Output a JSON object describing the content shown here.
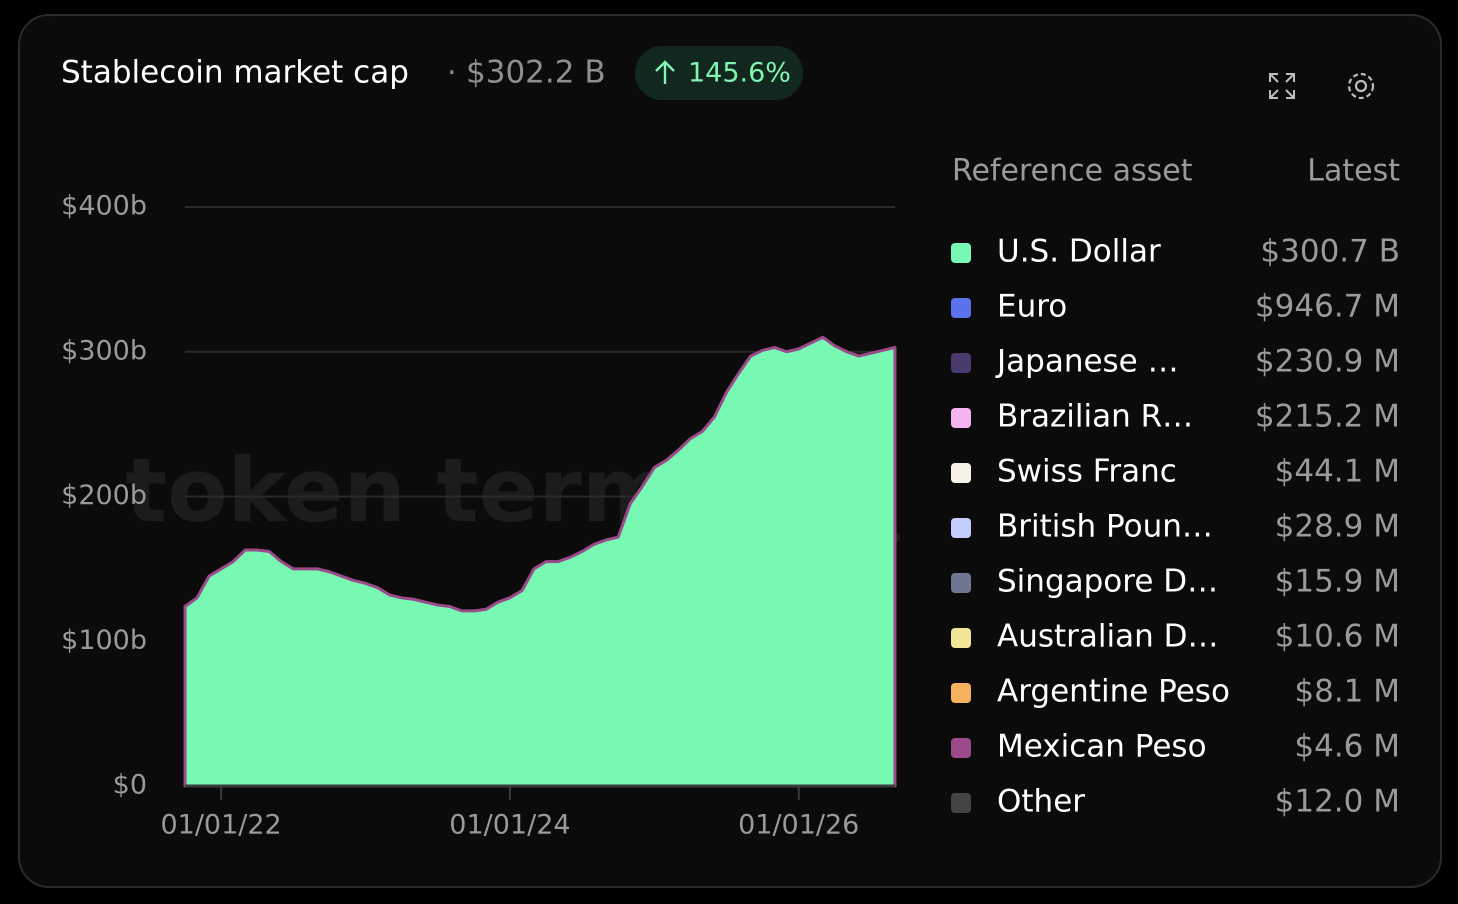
{
  "chart_data": {
    "type": "area",
    "title": "Stablecoin market cap",
    "total": 302.2,
    "total_label": "$302.2 B",
    "change": 145.6,
    "change_label": "145.6%",
    "watermark": "token terminal_",
    "legend_headers": [
      "Reference asset",
      "Latest"
    ],
    "x": [
      "10/01/21",
      "11/01/21",
      "12/01/21",
      "01/01/22",
      "02/01/22",
      "03/01/22",
      "04/01/22",
      "05/01/22",
      "06/01/22",
      "07/01/22",
      "08/01/22",
      "09/01/22",
      "10/01/22",
      "11/01/22",
      "12/01/22",
      "01/01/23",
      "02/01/23",
      "03/01/23",
      "04/01/23",
      "05/01/23",
      "06/01/23",
      "07/01/23",
      "08/01/23",
      "09/01/23",
      "10/01/23",
      "11/01/23",
      "12/01/23",
      "01/01/24",
      "02/01/24",
      "03/01/24",
      "04/01/24",
      "05/01/24",
      "06/01/24",
      "07/01/24",
      "08/01/24",
      "09/01/24",
      "10/01/24",
      "11/01/24",
      "12/01/24",
      "01/01/25",
      "02/01/25",
      "03/01/25",
      "04/01/25",
      "05/01/25",
      "06/01/25",
      "07/01/25",
      "08/01/25",
      "09/01/25",
      "10/01/25",
      "11/01/25",
      "12/01/25",
      "01/01/26",
      "02/01/26",
      "03/01/26",
      "04/01/26",
      "05/01/26",
      "06/01/26",
      "07/01/26",
      "08/01/26",
      "09/01/26"
    ],
    "xlim": [
      "10/01/21",
      "09/01/26"
    ],
    "xticks": [
      "01/01/22",
      "01/01/24",
      "01/01/26"
    ],
    "ylim": [
      0,
      400
    ],
    "yticks": [
      {
        "value": 0,
        "label": "$0"
      },
      {
        "value": 100,
        "label": "$100b"
      },
      {
        "value": 200,
        "label": "$200b"
      },
      {
        "value": 300,
        "label": "$300b"
      },
      {
        "value": 400,
        "label": "$400b"
      }
    ],
    "grid": true,
    "series": [
      {
        "name": "U.S. Dollar",
        "color": "#78f9b3",
        "latest": 300.7,
        "latest_label": "$300.7 B",
        "values": [
          124,
          130,
          145,
          150,
          155,
          163,
          163,
          162,
          155,
          150,
          150,
          150,
          148,
          145,
          142,
          140,
          137,
          132,
          130,
          129,
          127,
          125,
          124,
          121,
          121,
          122,
          127,
          130,
          135,
          150,
          155,
          155,
          158,
          162,
          167,
          170,
          172,
          195,
          207,
          220,
          225,
          232,
          240,
          245,
          255,
          272,
          285,
          297,
          301,
          303,
          300,
          302,
          306,
          310,
          304,
          300,
          297,
          299,
          301,
          303
        ]
      },
      {
        "name": "Euro",
        "color": "#5a73ec",
        "latest": 0.9467,
        "latest_label": "$946.7 M"
      },
      {
        "name": "Japanese …",
        "color": "#4a3b6e",
        "latest": 0.2309,
        "latest_label": "$230.9 M"
      },
      {
        "name": "Brazilian R…",
        "color": "#f5b4f0",
        "latest": 0.2152,
        "latest_label": "$215.2 M"
      },
      {
        "name": "Swiss Franc",
        "color": "#f6f3e6",
        "latest": 0.0441,
        "latest_label": "$44.1 M"
      },
      {
        "name": "British Poun…",
        "color": "#c3cdfb",
        "latest": 0.0289,
        "latest_label": "$28.9 M"
      },
      {
        "name": "Singapore D…",
        "color": "#6e7690",
        "latest": 0.0159,
        "latest_label": "$15.9 M"
      },
      {
        "name": "Australian D…",
        "color": "#f1e697",
        "latest": 0.0106,
        "latest_label": "$10.6 M"
      },
      {
        "name": "Argentine Peso",
        "color": "#f4b15e",
        "latest": 0.0081,
        "latest_label": "$8.1 M"
      },
      {
        "name": "Mexican Peso",
        "color": "#9b4a8a",
        "latest": 0.0046,
        "latest_label": "$4.6 M"
      },
      {
        "name": "Other",
        "color": "#444444",
        "latest": 0.012,
        "latest_label": "$12.0 M"
      }
    ]
  }
}
